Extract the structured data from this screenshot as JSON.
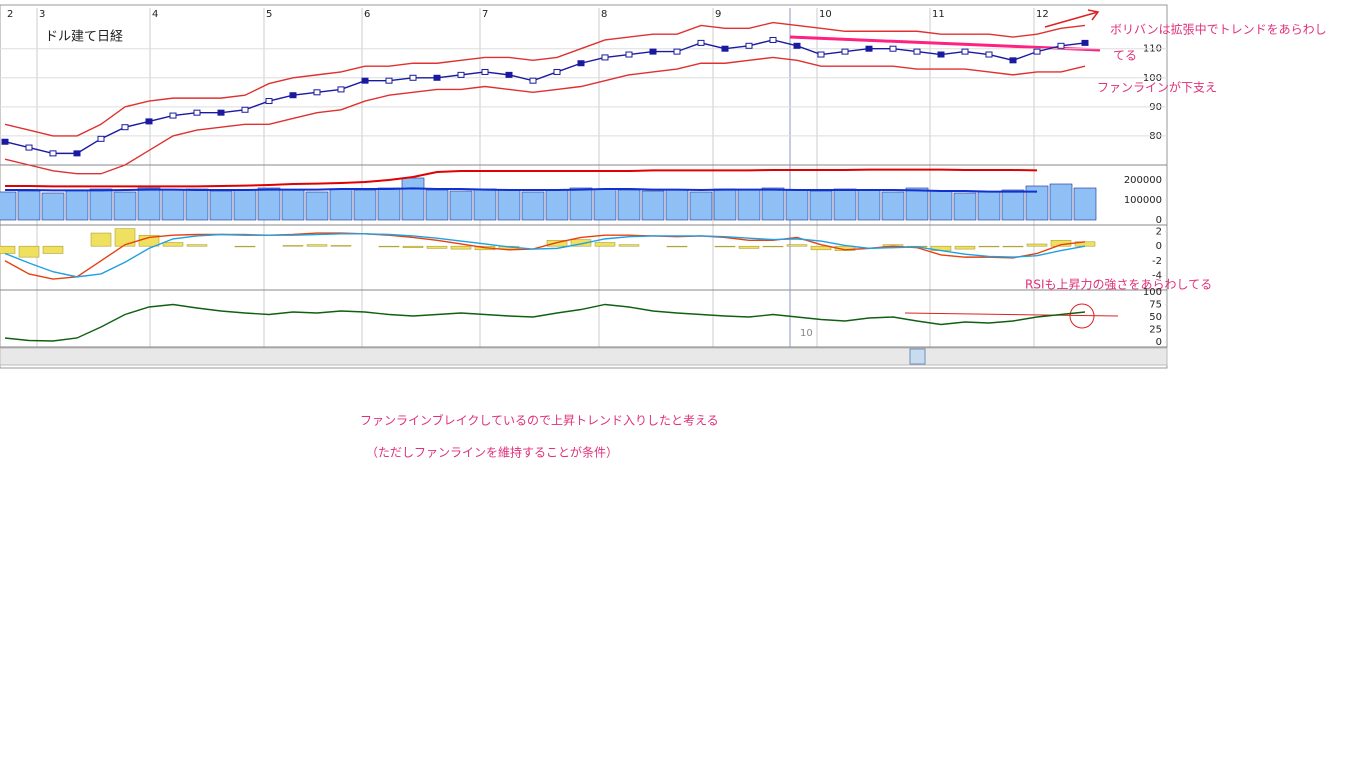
{
  "chart_data": [
    {
      "type": "line",
      "title": "ドル建て日経",
      "x_labels": [
        "2",
        "3",
        "4",
        "5",
        "6",
        "7",
        "8",
        "9",
        "10",
        "11",
        "12"
      ],
      "cursor_label": "10",
      "ylim": [
        70,
        124
      ],
      "yticks": [
        80,
        90,
        100,
        110
      ],
      "grid": true,
      "series": [
        {
          "name": "upper",
          "color": "#e03030",
          "values": [
            84,
            82,
            80,
            80,
            84,
            90,
            92,
            93,
            93,
            93,
            94,
            98,
            100,
            101,
            102,
            104,
            104,
            105,
            105,
            106,
            107,
            107,
            106,
            107,
            110,
            113,
            114,
            115,
            115,
            118,
            117,
            117,
            119,
            118,
            117,
            116,
            116,
            116,
            116,
            115,
            115,
            115,
            114,
            115,
            117,
            118
          ]
        },
        {
          "name": "lower",
          "color": "#e03030",
          "values": [
            72,
            70,
            68,
            67,
            67,
            70,
            75,
            80,
            82,
            83,
            84,
            84,
            86,
            88,
            89,
            92,
            94,
            95,
            96,
            96,
            97,
            96,
            95,
            96,
            97,
            99,
            101,
            102,
            103,
            105,
            105,
            106,
            107,
            106,
            104,
            104,
            104,
            104,
            103,
            103,
            103,
            102,
            101,
            102,
            102,
            104
          ]
        },
        {
          "name": "price",
          "color": "#1a1aa0",
          "values": [
            78,
            76,
            74,
            74,
            79,
            83,
            85,
            87,
            88,
            88,
            89,
            92,
            94,
            95,
            96,
            99,
            99,
            100,
            100,
            101,
            102,
            101,
            99,
            102,
            105,
            107,
            108,
            109,
            109,
            112,
            110,
            111,
            113,
            111,
            108,
            109,
            110,
            110,
            109,
            108,
            109,
            108,
            106,
            109,
            111,
            112
          ]
        }
      ]
    },
    {
      "type": "bar",
      "ylim": [
        -25000,
        275000
      ],
      "yticks": [
        0,
        100000,
        200000
      ],
      "color": "#8ec0f5",
      "values": [
        140000,
        145000,
        135000,
        150000,
        155000,
        140000,
        160000,
        150000,
        155000,
        145000,
        150000,
        160000,
        150000,
        140000,
        155000,
        150000,
        160000,
        210000,
        150000,
        145000,
        155000,
        150000,
        140000,
        150000,
        160000,
        155000,
        150000,
        145000,
        150000,
        140000,
        155000,
        150000,
        160000,
        150000,
        145000,
        155000,
        150000,
        140000,
        160000,
        145000,
        135000,
        140000,
        150000,
        170000,
        180000,
        160000
      ],
      "series": [
        {
          "name": "long",
          "color": "#e00000",
          "values": [
            170000,
            170000,
            168000,
            168000,
            168000,
            168000,
            168000,
            168000,
            168000,
            170000,
            172000,
            175000,
            180000,
            182000,
            185000,
            190000,
            200000,
            215000,
            240000,
            245000,
            245000,
            245000,
            245000,
            245000,
            245000,
            245000,
            245000,
            248000,
            248000,
            248000,
            248000,
            248000,
            250000,
            250000,
            250000,
            250000,
            252000,
            252000,
            252000,
            252000,
            250000,
            250000,
            250000,
            248000,
            null,
            null
          ]
        },
        {
          "name": "short",
          "color": "#1030d0",
          "values": [
            150000,
            150000,
            148000,
            148000,
            148000,
            150000,
            152000,
            152000,
            150000,
            150000,
            150000,
            152000,
            152000,
            152000,
            155000,
            155000,
            155000,
            158000,
            155000,
            155000,
            152000,
            150000,
            150000,
            150000,
            152000,
            155000,
            155000,
            152000,
            152000,
            150000,
            152000,
            152000,
            152000,
            150000,
            150000,
            150000,
            150000,
            150000,
            148000,
            145000,
            145000,
            142000,
            142000,
            142000,
            null,
            null
          ]
        }
      ]
    },
    {
      "type": "line",
      "ylim": [
        -6,
        2.9
      ],
      "yticks": [
        2,
        0,
        -2,
        -4
      ],
      "histogram_color": "#f0e060",
      "histogram": [
        -1,
        -1.5,
        -1,
        0,
        1.8,
        2.4,
        1.5,
        0.5,
        0.2,
        0,
        -0.1,
        0,
        0.1,
        0.2,
        0.1,
        0,
        -0.1,
        -0.2,
        -0.3,
        -0.4,
        -0.5,
        -0.4,
        0,
        0.8,
        0.9,
        0.5,
        0.2,
        0,
        -0.1,
        0,
        -0.1,
        -0.3,
        -0.1,
        0.2,
        -0.5,
        -0.6,
        0,
        0.2,
        -0.1,
        -0.6,
        -0.4,
        -0.1,
        -0.1,
        0.3,
        0.8,
        0.6
      ],
      "series": [
        {
          "name": "macd",
          "color": "#e84010",
          "values": [
            -2,
            -3.8,
            -4.5,
            -4.2,
            -2,
            0.2,
            1.2,
            1.5,
            1.6,
            1.6,
            1.5,
            1.5,
            1.6,
            1.8,
            1.8,
            1.7,
            1.5,
            1.2,
            0.8,
            0.3,
            -0.2,
            -0.5,
            -0.4,
            0.5,
            1.2,
            1.5,
            1.5,
            1.4,
            1.3,
            1.4,
            1.2,
            0.8,
            0.8,
            1.2,
            0.2,
            -0.5,
            -0.3,
            0,
            -0.2,
            -1.2,
            -1.5,
            -1.5,
            -1.6,
            -1,
            0.2,
            0.6
          ]
        },
        {
          "name": "signal",
          "color": "#20a0e0",
          "values": [
            -1,
            -2.3,
            -3.5,
            -4.2,
            -3.8,
            -2.2,
            -0.3,
            1,
            1.4,
            1.6,
            1.6,
            1.5,
            1.5,
            1.6,
            1.7,
            1.7,
            1.6,
            1.4,
            1.1,
            0.7,
            0.3,
            -0.1,
            -0.4,
            -0.3,
            0.3,
            1,
            1.3,
            1.4,
            1.4,
            1.4,
            1.3,
            1.1,
            0.9,
            1,
            0.7,
            0.1,
            -0.3,
            -0.2,
            -0.1,
            -0.6,
            -1.1,
            -1.4,
            -1.5,
            -1.3,
            -0.6,
            0
          ]
        }
      ]
    },
    {
      "type": "line",
      "ylim": [
        -10,
        104
      ],
      "yticks": [
        0,
        25,
        50,
        75,
        100
      ],
      "series": [
        {
          "name": "rsi",
          "color": "#106010",
          "values": [
            8,
            3,
            2,
            8,
            30,
            55,
            70,
            75,
            68,
            62,
            58,
            55,
            60,
            58,
            62,
            60,
            55,
            52,
            55,
            58,
            55,
            52,
            50,
            58,
            65,
            75,
            70,
            62,
            58,
            55,
            52,
            50,
            55,
            50,
            45,
            42,
            48,
            50,
            42,
            35,
            40,
            38,
            42,
            50,
            55,
            60
          ]
        }
      ]
    }
  ],
  "annotations": {
    "bollinger": "ボリバンは拡張中でトレンドをあらわし",
    "bollinger_cont": "てる",
    "fan_line": "ファンラインが下支え",
    "rsi": "RSIも上昇力の強さをあらわしてる",
    "conclusion": "ファンラインブレイクしているので上昇トレンド入りしたと考える",
    "condition": "（ただしファンラインを維持することが条件）"
  }
}
